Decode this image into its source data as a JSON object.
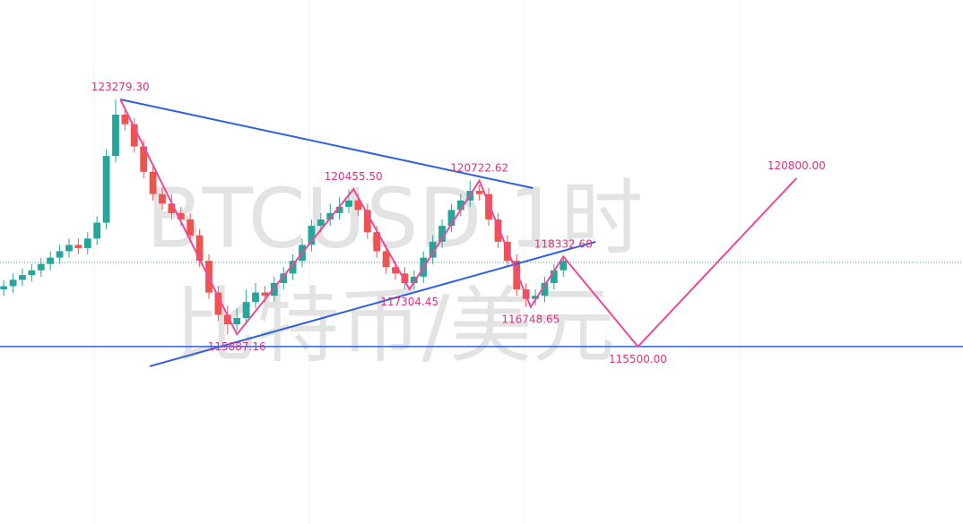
{
  "chart_data": {
    "type": "candlestick",
    "watermark": [
      "BTCUSD 1时",
      "比特币/美元"
    ],
    "xlim": [
      -0.8,
      205.7
    ],
    "ylim": [
      109916,
      126408
    ],
    "candles": {
      "x": [
        0,
        2,
        4,
        6,
        8,
        10,
        12,
        14,
        16,
        18,
        20,
        22,
        24,
        26,
        28,
        30,
        32,
        34,
        36,
        38,
        40,
        42,
        44,
        46,
        48,
        50,
        52,
        54,
        56,
        58,
        60,
        62,
        64,
        66,
        68,
        70,
        72,
        74,
        76,
        78,
        80,
        82,
        84,
        86,
        88,
        90,
        92,
        94,
        96,
        98,
        100,
        102,
        104,
        106,
        108,
        110,
        112,
        114,
        116,
        118,
        120
      ],
      "open": [
        117300,
        117400,
        117600,
        117750,
        117900,
        118100,
        118300,
        118500,
        118700,
        118600,
        118900,
        119400,
        121500,
        122800,
        122500,
        121800,
        121000,
        120300,
        120000,
        119700,
        119500,
        119000,
        118200,
        117200,
        116500,
        116200,
        116400,
        116900,
        117200,
        117100,
        117500,
        117800,
        118200,
        118700,
        119300,
        119500,
        119700,
        119900,
        120100,
        119800,
        119100,
        118500,
        118000,
        117800,
        117500,
        117700,
        118300,
        118800,
        119300,
        119800,
        120100,
        120400,
        120300,
        119500,
        118800,
        118200,
        117300,
        117000,
        117100,
        117500,
        117900
      ],
      "high": [
        117600,
        117800,
        117950,
        118100,
        118300,
        118500,
        118700,
        118900,
        118900,
        119100,
        119600,
        121700,
        123279.3,
        123000,
        122700,
        122000,
        121200,
        120500,
        120300,
        119900,
        119700,
        119200,
        118400,
        117400,
        116800,
        116700,
        117300,
        117500,
        117400,
        117700,
        118000,
        118400,
        118900,
        119500,
        119700,
        120000,
        120200,
        120455.5,
        120300,
        120000,
        119300,
        118700,
        118200,
        118000,
        117900,
        118500,
        119000,
        119500,
        120000,
        120300,
        120722.62,
        120600,
        120500,
        119700,
        119000,
        118400,
        117500,
        117300,
        117700,
        118100,
        118332.68
      ],
      "low": [
        117100,
        117200,
        117400,
        117550,
        117700,
        117900,
        118100,
        118300,
        118400,
        118400,
        118700,
        119200,
        121300,
        122300,
        121600,
        120800,
        120100,
        119800,
        119500,
        119300,
        118800,
        118000,
        117000,
        116300,
        115887.16,
        116000,
        116200,
        116700,
        116900,
        116900,
        117300,
        117600,
        118000,
        118500,
        119100,
        119300,
        119500,
        119700,
        119600,
        118900,
        118300,
        117800,
        117600,
        117304.45,
        117300,
        117500,
        118100,
        118600,
        119100,
        119600,
        119900,
        120100,
        119300,
        118600,
        118000,
        117100,
        116748.65,
        116800,
        116900,
        117300,
        117700
      ],
      "close": [
        117400,
        117600,
        117750,
        117900,
        118100,
        118300,
        118500,
        118700,
        118600,
        118900,
        119400,
        121500,
        122800,
        122500,
        121800,
        121000,
        120300,
        120000,
        119700,
        119500,
        119000,
        118200,
        117200,
        116500,
        116200,
        116400,
        116900,
        117200,
        117100,
        117500,
        117800,
        118200,
        118700,
        119300,
        119500,
        119700,
        119900,
        120100,
        119800,
        119100,
        118500,
        118000,
        117800,
        117500,
        117700,
        118300,
        118800,
        119300,
        119800,
        120100,
        120400,
        120300,
        119500,
        118800,
        118200,
        117300,
        117000,
        117100,
        117500,
        117900,
        118200
      ],
      "up_color": "#26a69a",
      "down_color": "#ef5350"
    },
    "zigzag": {
      "name": "wave",
      "color": "#f0479a",
      "x": [
        25,
        50,
        75,
        87,
        102,
        113,
        120,
        136,
        170
      ],
      "values": [
        123279.3,
        115887.16,
        120455.5,
        117304.45,
        120722.62,
        116748.65,
        118332.68,
        115500,
        120800
      ],
      "value_labels": [
        "123279.30",
        "115887.16",
        "120455.50",
        "117304.45",
        "120722.62",
        "116748.65",
        "118332.68",
        "115500.00",
        "120800.00"
      ]
    },
    "trendlines": [
      {
        "color": "#2f5fe0",
        "x": [
          25,
          113.5
        ],
        "values": [
          123279.3,
          120488
        ]
      },
      {
        "color": "#2f5fe0",
        "x": [
          31.3,
          126.9
        ],
        "values": [
          114878.7,
          118797
        ]
      }
    ],
    "hline": {
      "value": 115500,
      "color": "#2f5fe0"
    },
    "price_line": {
      "value": 118149,
      "color": "#4a9a8a"
    }
  }
}
